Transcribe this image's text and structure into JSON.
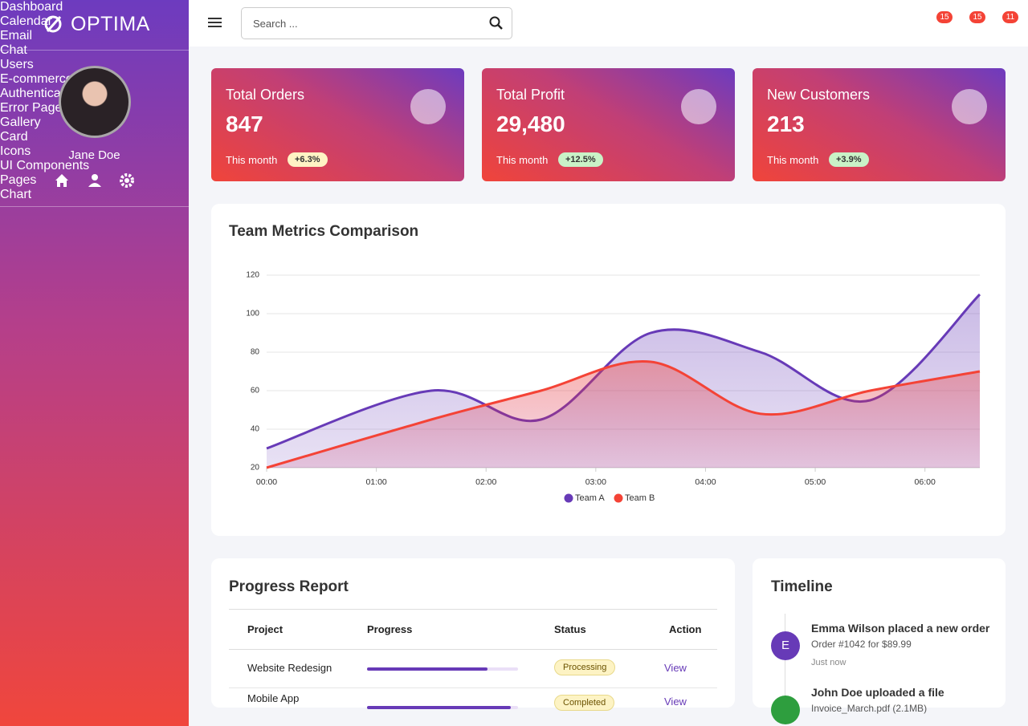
{
  "brand": "OPTIMA",
  "user": {
    "name": "Jane Doe"
  },
  "search": {
    "placeholder": "Search ..."
  },
  "badges": [
    "15",
    "15",
    "11"
  ],
  "menu": [
    {
      "label": "Dashboard",
      "submenu": false
    },
    {
      "label": "Calendar",
      "submenu": false
    },
    {
      "label": "Email",
      "submenu": false
    },
    {
      "label": "Chat",
      "submenu": false
    },
    {
      "label": "Users",
      "submenu": true
    },
    {
      "label": "E-commerce",
      "submenu": true
    },
    {
      "label": "Authentication",
      "submenu": true
    },
    {
      "label": "Error Pages",
      "submenu": true
    },
    {
      "label": "Gallery",
      "submenu": true
    },
    {
      "label": "Card",
      "submenu": true
    },
    {
      "label": "Icons",
      "submenu": true
    },
    {
      "label": "UI Components",
      "submenu": true
    },
    {
      "label": "Pages",
      "submenu": true
    },
    {
      "label": "Chart",
      "submenu": true
    }
  ],
  "stats": [
    {
      "title": "Total Orders",
      "value": "847",
      "period": "This month",
      "change": "+6.3%",
      "change_color": "#fff3c4"
    },
    {
      "title": "Total Profit",
      "value": "29,480",
      "period": "This month",
      "change": "+12.5%",
      "change_color": "#c9f2c7"
    },
    {
      "title": "New Customers",
      "value": "213",
      "period": "This month",
      "change": "+3.9%",
      "change_color": "#c9f2c7"
    }
  ],
  "chart_data": {
    "type": "area",
    "title": "Team Metrics Comparison",
    "x": [
      0,
      1.5,
      2.5,
      3.5,
      4.5,
      5.5,
      6.5
    ],
    "xlim": [
      0,
      6.5
    ],
    "xticks": [
      {
        "value": 0,
        "label": "00:00"
      },
      {
        "value": 1,
        "label": "01:00"
      },
      {
        "value": 2,
        "label": "02:00"
      },
      {
        "value": 3,
        "label": "03:00"
      },
      {
        "value": 4,
        "label": "04:00"
      },
      {
        "value": 5,
        "label": "05:00"
      },
      {
        "value": 6,
        "label": "06:00"
      }
    ],
    "ylim": [
      20,
      120
    ],
    "yticks": [
      20,
      40,
      60,
      80,
      100,
      120
    ],
    "grid": true,
    "series": [
      {
        "name": "Team A",
        "color": "#673ab7",
        "values": [
          30,
          60,
          45,
          90,
          80,
          55,
          110
        ]
      },
      {
        "name": "Team B",
        "color": "#f44336",
        "values": [
          20,
          45,
          60,
          75,
          48,
          60,
          70
        ]
      }
    ]
  },
  "progress": {
    "title": "Progress Report",
    "columns": [
      "Project",
      "Progress",
      "Status",
      "Action"
    ],
    "rows": [
      {
        "project": "Website Redesign",
        "progress": 80,
        "status": "Processing",
        "action": "View"
      },
      {
        "project": "Mobile App",
        "progress": 95,
        "status": "Completed",
        "action": "View"
      }
    ]
  },
  "timeline": {
    "title": "Timeline",
    "items": [
      {
        "initial": "E",
        "color": "#673ab7",
        "title": "Emma Wilson placed a new order",
        "detail": "Order #1042 for $89.99",
        "time": "Just now"
      },
      {
        "color": "#2e9e3e",
        "title": "John Doe uploaded a file",
        "detail": "Invoice_March.pdf (2.1MB)"
      }
    ]
  }
}
